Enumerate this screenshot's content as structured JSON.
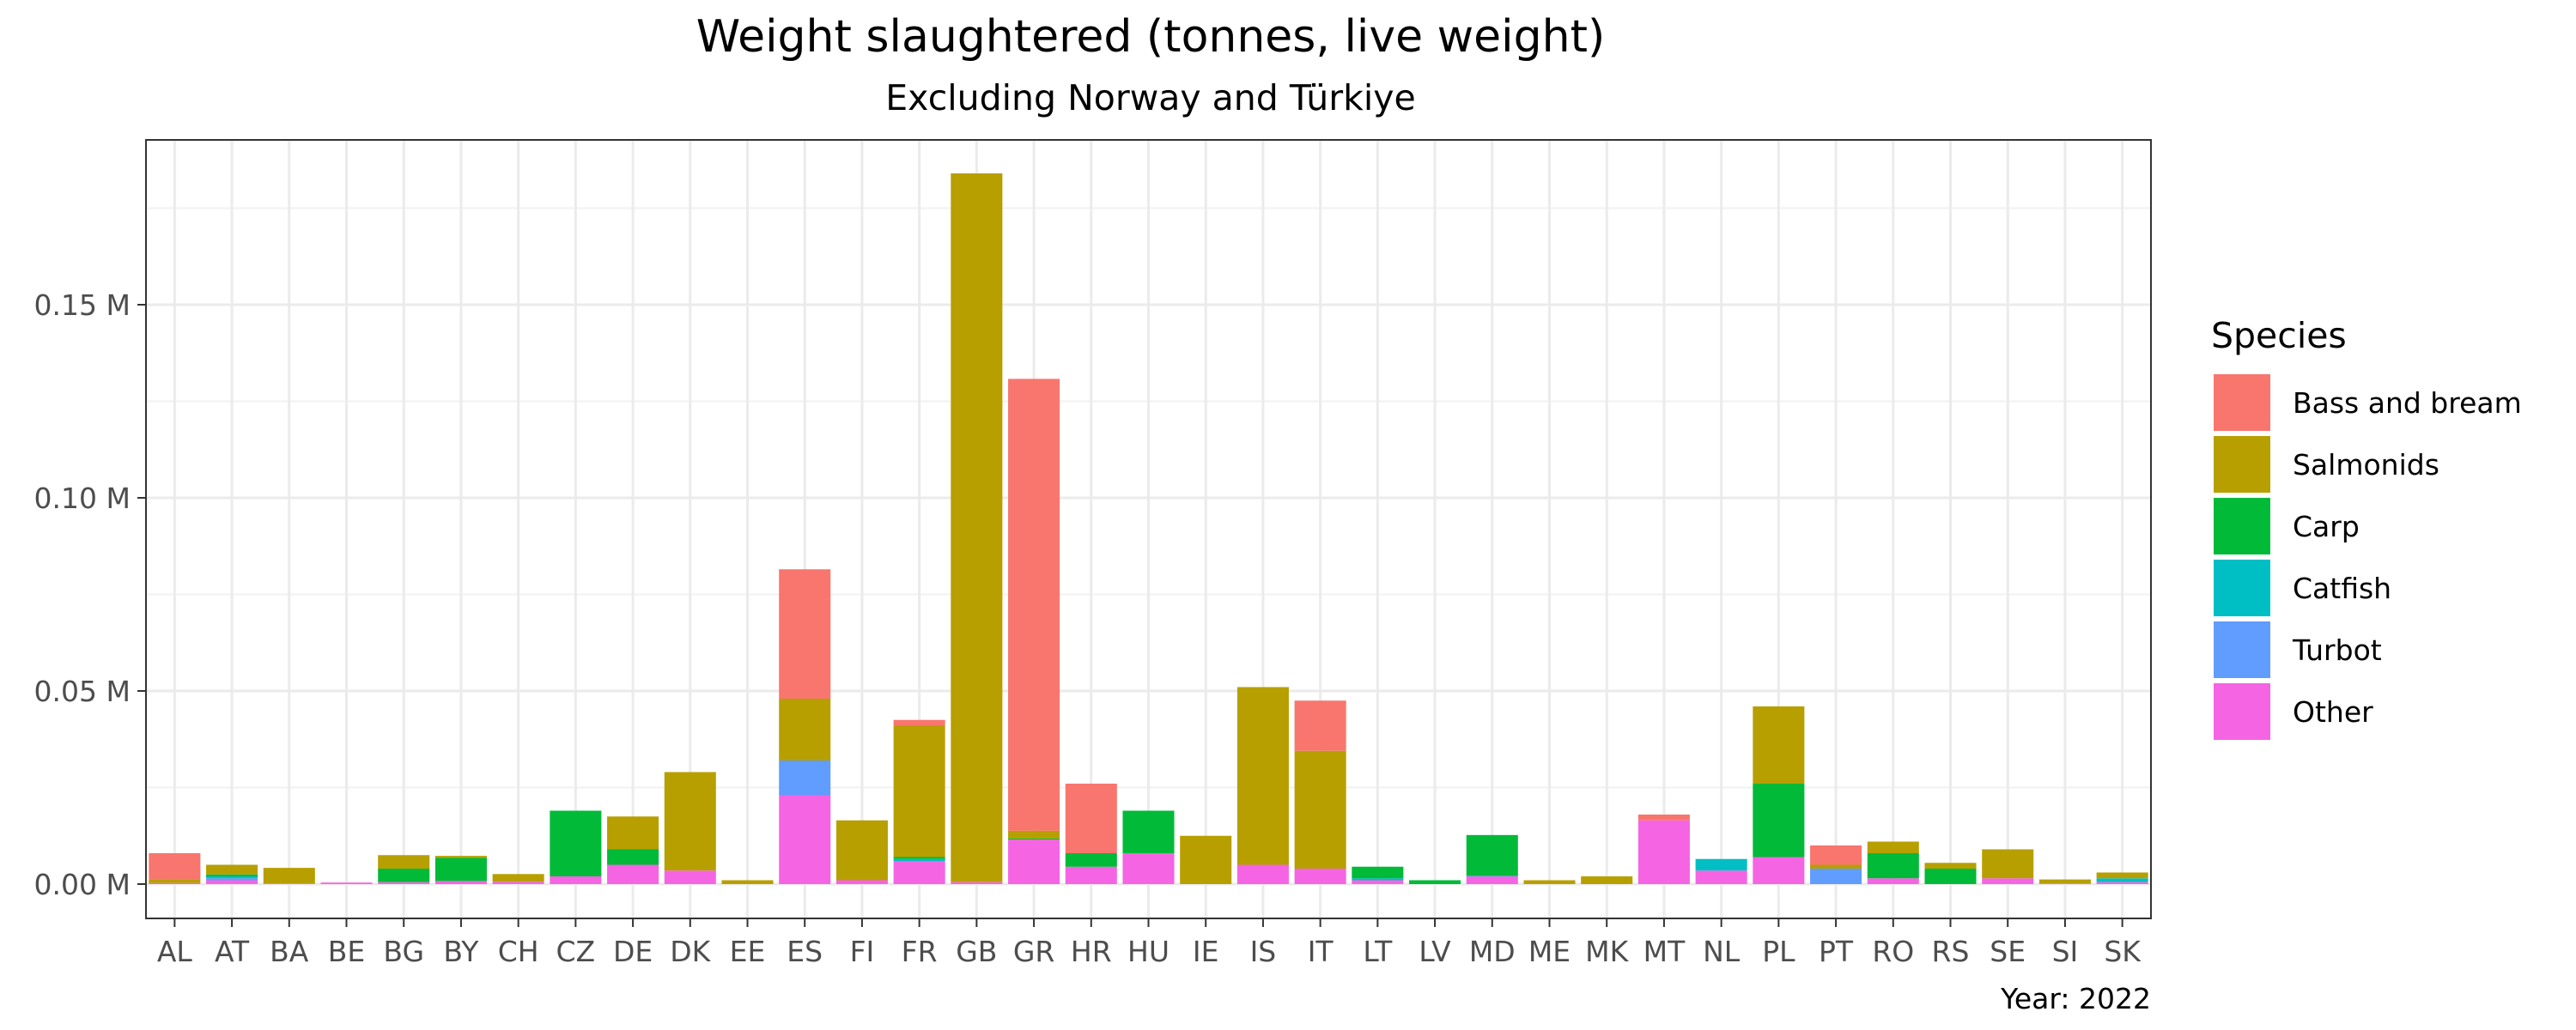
{
  "chart_data": {
    "type": "bar",
    "stacked": true,
    "title": "Weight slaughtered (tonnes, live weight)",
    "subtitle": "Excluding Norway and Türkiye",
    "caption": "Year: 2022",
    "xlabel": "",
    "ylabel": "",
    "ylim": [
      0,
      0.19
    ],
    "y_ticks": [
      0,
      0.05,
      0.1,
      0.15
    ],
    "y_tick_labels": [
      "0.00 M",
      "0.05 M",
      "0.10 M",
      "0.15 M"
    ],
    "grid": true,
    "legend_position": "right",
    "legend_title": "Species",
    "categories": [
      "AL",
      "AT",
      "BA",
      "BE",
      "BG",
      "BY",
      "CH",
      "CZ",
      "DE",
      "DK",
      "EE",
      "ES",
      "FI",
      "FR",
      "GB",
      "GR",
      "HR",
      "HU",
      "IE",
      "IS",
      "IT",
      "LT",
      "LV",
      "MD",
      "ME",
      "MK",
      "MT",
      "NL",
      "PL",
      "PT",
      "RO",
      "RS",
      "SE",
      "SI",
      "SK"
    ],
    "series": [
      {
        "name": "Other",
        "color": "#F564E3",
        "values": [
          0.0003,
          0.001,
          0.0002,
          0.0004,
          0.0005,
          0.0008,
          0.0006,
          0.002,
          0.005,
          0.0035,
          0,
          0.023,
          0.001,
          0.006,
          0.0005,
          0.0115,
          0.0045,
          0.008,
          0,
          0.005,
          0.004,
          0.001,
          0,
          0.002,
          0,
          0,
          0.0165,
          0.0035,
          0.007,
          0,
          0.0015,
          0,
          0.0015,
          0.0002,
          0.0005
        ]
      },
      {
        "name": "Turbot",
        "color": "#619CFF",
        "values": [
          0,
          0.0005,
          0,
          0,
          0,
          0,
          0,
          0,
          0,
          0,
          0,
          0.009,
          0,
          0,
          0,
          0,
          0,
          0,
          0,
          0,
          0,
          0,
          0,
          0,
          0,
          0,
          0,
          0,
          0,
          0.004,
          0,
          0,
          0,
          0,
          0
        ]
      },
      {
        "name": "Catfish",
        "color": "#00BFC4",
        "values": [
          0,
          0.0005,
          0,
          0,
          0,
          0,
          0,
          0,
          0,
          0,
          0,
          0,
          0,
          0.0005,
          0,
          0,
          0,
          0,
          0,
          0,
          0,
          0.0005,
          0,
          0.0002,
          0,
          0,
          0,
          0.003,
          0,
          0,
          0,
          0,
          0,
          0,
          0.001
        ]
      },
      {
        "name": "Carp",
        "color": "#00BA38",
        "values": [
          0,
          0.0005,
          0,
          0,
          0.0035,
          0.006,
          0,
          0.017,
          0.004,
          0,
          0,
          0,
          0,
          0.0005,
          0,
          0.0003,
          0.0035,
          0.011,
          0,
          0,
          0,
          0.003,
          0.001,
          0.0105,
          0,
          0,
          0,
          0,
          0.019,
          0,
          0.0065,
          0.004,
          0,
          0,
          0
        ]
      },
      {
        "name": "Salmonids",
        "color": "#B79F00",
        "values": [
          0.001,
          0.0025,
          0.004,
          0,
          0.0035,
          0.0005,
          0.002,
          0,
          0.0085,
          0.0255,
          0.001,
          0.016,
          0.0155,
          0.034,
          0.1835,
          0.002,
          0,
          0,
          0.0125,
          0.046,
          0.0305,
          0,
          0,
          0,
          0.001,
          0.002,
          0,
          0,
          0.02,
          0.001,
          0.003,
          0.0015,
          0.0075,
          0.001,
          0.0015
        ]
      },
      {
        "name": "Bass and bream",
        "color": "#F8766D",
        "values": [
          0.0067,
          0,
          0,
          0,
          0,
          0,
          0,
          0,
          0,
          0,
          0,
          0.0335,
          0,
          0.0015,
          0,
          0.117,
          0.018,
          0,
          0,
          0,
          0.013,
          0,
          0,
          0,
          0,
          0,
          0.0015,
          0,
          0,
          0.005,
          0,
          0,
          0,
          0,
          0
        ]
      }
    ]
  },
  "legend": {
    "order": [
      "Bass and bream",
      "Salmonids",
      "Carp",
      "Catfish",
      "Turbot",
      "Other"
    ]
  }
}
